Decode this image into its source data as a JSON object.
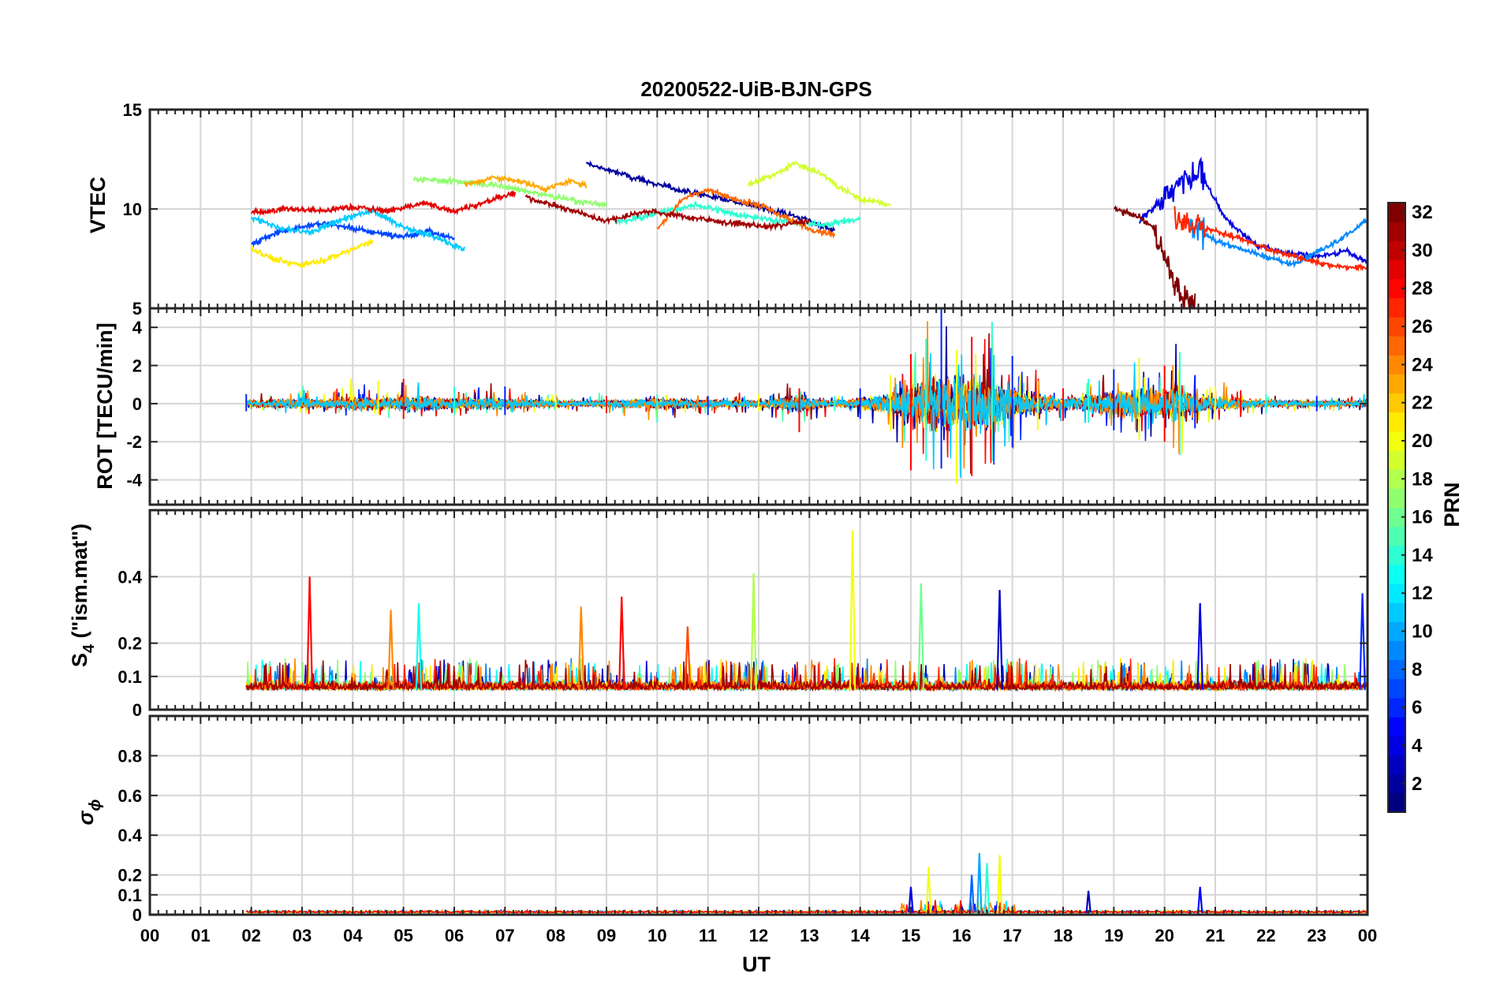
{
  "title": "20200522-UiB-BJN-GPS",
  "xlabel": "UT",
  "x_ticks": [
    "00",
    "01",
    "02",
    "03",
    "04",
    "05",
    "06",
    "07",
    "08",
    "09",
    "10",
    "11",
    "12",
    "13",
    "14",
    "15",
    "16",
    "17",
    "18",
    "19",
    "20",
    "21",
    "22",
    "23",
    "00"
  ],
  "colorbar": {
    "label": "PRN",
    "min": 1,
    "max": 32,
    "ticks": [
      "2",
      "4",
      "6",
      "8",
      "10",
      "12",
      "14",
      "16",
      "18",
      "20",
      "22",
      "24",
      "26",
      "28",
      "30",
      "32"
    ],
    "colormap": "jet"
  },
  "panels": {
    "vtec": {
      "ylabel": "VTEC",
      "yticks": [
        "5",
        "10",
        "15"
      ]
    },
    "rot": {
      "ylabel": "ROT [TECU/min]",
      "yticks": [
        "-4",
        "-2",
        "0",
        "2",
        "4"
      ]
    },
    "s4": {
      "ylabel_main": "S",
      "ylabel_sub": "4",
      "ylabel_rest": " (\"ism.mat\")",
      "yticks": [
        "0",
        "0.1",
        "0.2",
        "0.4"
      ]
    },
    "sigma": {
      "ylabel_main": "σ",
      "ylabel_sub": "ϕ",
      "yticks": [
        "0",
        "0.1",
        "0.2",
        "0.4",
        "0.6",
        "0.8"
      ]
    }
  },
  "chart_data": [
    {
      "type": "line",
      "title": "20200522-UiB-BJN-GPS",
      "xlabel": "",
      "ylabel": "VTEC",
      "xlim": [
        0,
        24
      ],
      "ylim": [
        5,
        15
      ],
      "grid": true,
      "series": [
        {
          "prn": 2,
          "x": [
            8.6,
            9.5,
            10.5,
            11.5,
            12.5,
            13.0,
            13.5
          ],
          "y": [
            12.3,
            11.6,
            10.9,
            10.4,
            9.8,
            9.4,
            8.9
          ]
        },
        {
          "prn": 4,
          "x": [
            19.5,
            20.2,
            20.7,
            21.2,
            21.8,
            22.4,
            23.0,
            23.6,
            24.0
          ],
          "y": [
            9.4,
            11.0,
            11.8,
            9.5,
            8.2,
            7.8,
            7.6,
            7.9,
            7.3
          ]
        },
        {
          "prn": 7,
          "x": [
            2.0,
            2.5,
            3.0,
            3.5,
            4.0,
            4.5,
            5.0,
            5.5,
            6.0
          ],
          "y": [
            8.2,
            8.8,
            9.1,
            9.3,
            9.0,
            8.8,
            8.6,
            8.9,
            8.5
          ]
        },
        {
          "prn": 9,
          "x": [
            20.5,
            21.0,
            21.5,
            22.0,
            22.5,
            23.0,
            23.5,
            24.0
          ],
          "y": [
            9.2,
            8.4,
            8.0,
            7.6,
            7.2,
            7.8,
            8.5,
            9.5
          ]
        },
        {
          "prn": 11,
          "x": [
            2.0,
            2.6,
            3.2,
            3.8,
            4.4,
            5.0,
            5.6,
            6.2
          ],
          "y": [
            9.6,
            9.0,
            8.8,
            9.5,
            9.9,
            9.1,
            8.6,
            8.0
          ]
        },
        {
          "prn": 14,
          "x": [
            9.2,
            10.0,
            10.8,
            11.6,
            12.4,
            13.2,
            14.0
          ],
          "y": [
            9.3,
            9.8,
            10.2,
            9.7,
            9.4,
            9.2,
            9.5
          ]
        },
        {
          "prn": 17,
          "x": [
            5.2,
            6.0,
            6.8,
            7.6,
            8.4,
            9.0
          ],
          "y": [
            11.5,
            11.4,
            11.2,
            10.8,
            10.4,
            10.2
          ]
        },
        {
          "prn": 19,
          "x": [
            11.8,
            12.3,
            12.7,
            13.2,
            13.6,
            14.0,
            14.6
          ],
          "y": [
            11.2,
            11.7,
            12.3,
            11.8,
            11.1,
            10.5,
            10.2
          ]
        },
        {
          "prn": 21,
          "x": [
            2.0,
            2.5,
            3.0,
            3.5,
            4.0,
            4.4
          ],
          "y": [
            8.0,
            7.4,
            7.2,
            7.5,
            8.0,
            8.4
          ]
        },
        {
          "prn": 23,
          "x": [
            6.2,
            6.8,
            7.3,
            7.8,
            8.3,
            8.6
          ],
          "y": [
            11.2,
            11.6,
            11.4,
            11.0,
            11.4,
            11.2
          ]
        },
        {
          "prn": 25,
          "x": [
            10.0,
            10.5,
            11.0,
            11.5,
            12.0,
            12.5,
            13.0,
            13.5
          ],
          "y": [
            9.0,
            10.5,
            11.0,
            10.5,
            10.2,
            9.6,
            9.0,
            8.7
          ]
        },
        {
          "prn": 27,
          "x": [
            20.2,
            20.8,
            21.4,
            22.0,
            22.6,
            23.2,
            23.8,
            24.0
          ],
          "y": [
            9.6,
            9.0,
            8.6,
            8.0,
            7.6,
            7.2,
            7.0,
            7.1
          ]
        },
        {
          "prn": 29,
          "x": [
            2.0,
            2.7,
            3.4,
            4.0,
            4.7,
            5.4,
            6.0,
            6.7,
            7.2
          ],
          "y": [
            9.8,
            10.0,
            9.9,
            10.1,
            9.9,
            10.3,
            9.9,
            10.4,
            10.8
          ]
        },
        {
          "prn": 31,
          "x": [
            7.4,
            8.2,
            9.0,
            9.8,
            10.6,
            11.4,
            12.2,
            13.0
          ],
          "y": [
            10.6,
            10.0,
            9.4,
            9.9,
            9.6,
            9.3,
            9.1,
            9.4
          ]
        },
        {
          "prn": 32,
          "x": [
            19.0,
            19.5,
            19.8,
            20.0,
            20.2,
            20.4,
            20.6
          ],
          "y": [
            10.0,
            9.6,
            9.0,
            7.5,
            6.2,
            5.4,
            5.1
          ]
        }
      ]
    },
    {
      "type": "line",
      "xlabel": "",
      "ylabel": "ROT [TECU/min]",
      "xlim": [
        0,
        24
      ],
      "ylim": [
        -5.3,
        5
      ],
      "grid": true,
      "envelope": {
        "x": [
          1.9,
          4.5,
          5.0,
          6.0,
          7.0,
          8.0,
          9.0,
          10.0,
          11.0,
          12.0,
          12.8,
          13.5,
          14.0,
          14.6,
          15.0,
          15.3,
          15.6,
          15.9,
          16.2,
          16.6,
          17.0,
          17.5,
          18.0,
          18.5,
          19.0,
          19.5,
          20.0,
          20.3,
          20.6,
          21.0,
          21.5,
          22.0,
          23.0,
          24.0
        ],
        "max": [
          0.5,
          1.2,
          1.3,
          0.9,
          0.9,
          0.5,
          0.4,
          0.5,
          0.4,
          0.5,
          0.8,
          0.4,
          0.8,
          1.5,
          2.6,
          3.4,
          5.0,
          2.8,
          3.5,
          4.3,
          2.5,
          1.2,
          0.8,
          1.3,
          1.8,
          2.4,
          2.0,
          2.7,
          1.5,
          0.9,
          0.7,
          0.5,
          0.4,
          0.4
        ],
        "min": [
          -0.4,
          -0.6,
          -0.8,
          -0.6,
          -0.6,
          -0.3,
          -0.5,
          -1.0,
          -0.6,
          -0.4,
          -1.5,
          -0.4,
          -0.8,
          -1.4,
          -3.5,
          -3.0,
          -3.4,
          -4.2,
          -3.8,
          -3.0,
          -2.3,
          -1.4,
          -0.9,
          -1.0,
          -1.4,
          -1.9,
          -2.0,
          -2.7,
          -1.3,
          -0.9,
          -0.7,
          -0.5,
          -0.4,
          -0.4
        ]
      }
    },
    {
      "type": "line",
      "xlabel": "",
      "ylabel": "S4 (\"ism.mat\")",
      "xlim": [
        0,
        24
      ],
      "ylim": [
        0,
        0.6
      ],
      "grid": true,
      "baseline": 0.06,
      "peaks": [
        {
          "x": 3.15,
          "y": 0.4,
          "prn": 28
        },
        {
          "x": 4.75,
          "y": 0.3,
          "prn": 24
        },
        {
          "x": 5.3,
          "y": 0.32,
          "prn": 13
        },
        {
          "x": 8.5,
          "y": 0.31,
          "prn": 24
        },
        {
          "x": 9.3,
          "y": 0.34,
          "prn": 28
        },
        {
          "x": 10.6,
          "y": 0.25,
          "prn": 26
        },
        {
          "x": 11.9,
          "y": 0.41,
          "prn": 18
        },
        {
          "x": 13.85,
          "y": 0.54,
          "prn": 20
        },
        {
          "x": 15.2,
          "y": 0.38,
          "prn": 16
        },
        {
          "x": 16.75,
          "y": 0.36,
          "prn": 3
        },
        {
          "x": 20.7,
          "y": 0.32,
          "prn": 4
        },
        {
          "x": 23.9,
          "y": 0.35,
          "prn": 6
        }
      ]
    },
    {
      "type": "line",
      "xlabel": "UT",
      "ylabel": "σϕ",
      "xlim": [
        0,
        24
      ],
      "ylim": [
        0,
        1
      ],
      "grid": true,
      "baseline": 0.01,
      "peaks": [
        {
          "x": 15.0,
          "y": 0.14,
          "prn": 4
        },
        {
          "x": 15.35,
          "y": 0.24,
          "prn": 20
        },
        {
          "x": 16.2,
          "y": 0.2,
          "prn": 8
        },
        {
          "x": 16.35,
          "y": 0.31,
          "prn": 10
        },
        {
          "x": 16.5,
          "y": 0.26,
          "prn": 14
        },
        {
          "x": 16.75,
          "y": 0.3,
          "prn": 20
        },
        {
          "x": 18.5,
          "y": 0.12,
          "prn": 3
        },
        {
          "x": 20.7,
          "y": 0.14,
          "prn": 5
        }
      ]
    }
  ]
}
